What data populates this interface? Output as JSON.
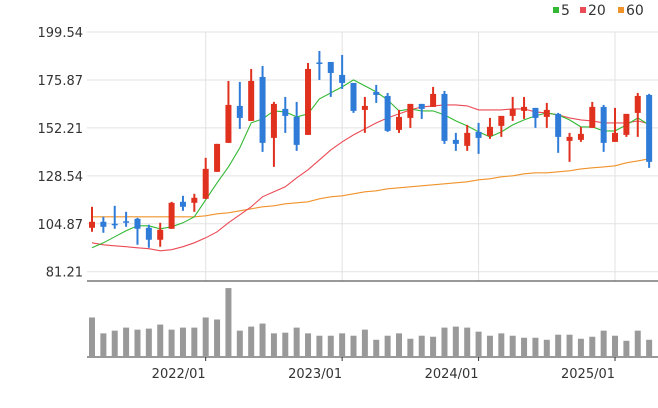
{
  "chart_data": {
    "type": "candlestick",
    "interval": "monthly",
    "dates": [
      "2021/03",
      "2021/04",
      "2021/05",
      "2021/06",
      "2021/07",
      "2021/08",
      "2021/09",
      "2021/10",
      "2021/11",
      "2021/12",
      "2022/01",
      "2022/02",
      "2022/03",
      "2022/04",
      "2022/05",
      "2022/06",
      "2022/07",
      "2022/08",
      "2022/09",
      "2022/10",
      "2022/11",
      "2022/12",
      "2023/01",
      "2023/02",
      "2023/03",
      "2023/04",
      "2023/05",
      "2023/06",
      "2023/07",
      "2023/08",
      "2023/09",
      "2023/10",
      "2023/11",
      "2023/12",
      "2024/01",
      "2024/02",
      "2024/03",
      "2024/04",
      "2024/05",
      "2024/06",
      "2024/07",
      "2024/08",
      "2024/09",
      "2024/10",
      "2024/11",
      "2024/12",
      "2025/01",
      "2025/02",
      "2025/03",
      "2025/04"
    ],
    "x_tick_labels": [
      "2022/01",
      "2023/01",
      "2024/01",
      "2025/01"
    ],
    "y_tick_labels": [
      "199.54",
      "175.87",
      "152.21",
      "128.54",
      "104.87",
      "81.21"
    ],
    "ylim": [
      81.21,
      199.54
    ],
    "grid": true,
    "up_color": "#e0301e",
    "down_color": "#2f7bd8",
    "ohlc": [
      [
        102.89,
        113.25,
        100.92,
        105.85
      ],
      [
        105.85,
        108.32,
        100.43,
        103.38
      ],
      [
        104.87,
        113.74,
        102.4,
        104.37
      ],
      [
        106.1,
        110.78,
        103.38,
        105.6
      ],
      [
        107.33,
        107.82,
        94.51,
        102.4
      ],
      [
        102.89,
        104.37,
        93.03,
        96.98
      ],
      [
        96.98,
        105.36,
        93.53,
        101.91
      ],
      [
        102.4,
        115.72,
        102.4,
        115.22
      ],
      [
        115.72,
        118.67,
        111.27,
        113.25
      ],
      [
        115.22,
        119.66,
        110.78,
        117.69
      ],
      [
        117.19,
        137.41,
        117.19,
        131.98
      ],
      [
        130.51,
        144.31,
        130.51,
        144.31
      ],
      [
        144.81,
        175.38,
        144.81,
        163.54
      ],
      [
        163.05,
        174.89,
        151.71,
        157.13
      ],
      [
        155.65,
        181.3,
        155.65,
        175.38
      ],
      [
        177.35,
        182.77,
        140.37,
        144.81
      ],
      [
        147.27,
        165.02,
        132.97,
        164.04
      ],
      [
        161.57,
        167.49,
        149.74,
        158.12
      ],
      [
        157.63,
        165.02,
        140.86,
        143.82
      ],
      [
        148.75,
        184.25,
        148.75,
        181.3
      ],
      [
        184.5,
        190.17,
        175.87,
        184.0
      ],
      [
        184.75,
        184.75,
        167.49,
        179.32
      ],
      [
        178.34,
        188.2,
        171.43,
        174.39
      ],
      [
        174.39,
        174.39,
        159.6,
        160.59
      ],
      [
        161.08,
        167.49,
        149.74,
        163.05
      ],
      [
        169.95,
        173.41,
        164.53,
        168.47
      ],
      [
        167.98,
        169.46,
        150.23,
        150.72
      ],
      [
        151.22,
        161.08,
        149.74,
        157.63
      ],
      [
        157.13,
        164.04,
        152.2,
        164.04
      ],
      [
        164.04,
        164.04,
        156.64,
        161.57
      ],
      [
        162.56,
        172.42,
        162.56,
        168.97
      ],
      [
        168.97,
        170.45,
        144.31,
        145.79
      ],
      [
        146.29,
        149.74,
        140.86,
        144.31
      ],
      [
        143.33,
        153.68,
        140.86,
        149.74
      ],
      [
        150.23,
        154.67,
        139.38,
        147.27
      ],
      [
        148.26,
        157.13,
        146.78,
        152.7
      ],
      [
        153.19,
        158.12,
        147.76,
        158.12
      ],
      [
        158.12,
        167.49,
        155.65,
        161.57
      ],
      [
        160.59,
        167.49,
        156.64,
        162.56
      ],
      [
        162.07,
        162.07,
        152.2,
        157.13
      ],
      [
        157.63,
        164.53,
        152.2,
        161.08
      ],
      [
        159.11,
        159.6,
        139.88,
        147.76
      ],
      [
        145.79,
        149.74,
        135.44,
        147.76
      ],
      [
        146.29,
        152.7,
        145.3,
        149.25
      ],
      [
        152.2,
        165.02,
        152.2,
        162.56
      ],
      [
        162.56,
        163.54,
        140.37,
        144.81
      ],
      [
        145.3,
        162.07,
        145.3,
        149.74
      ],
      [
        148.75,
        159.11,
        147.76,
        159.11
      ],
      [
        159.6,
        169.46,
        147.76,
        167.98
      ],
      [
        168.47,
        168.97,
        132.48,
        135.44
      ]
    ],
    "ohlc_order": [
      "open",
      "high",
      "low",
      "close"
    ],
    "moving_averages": [
      {
        "name": "5",
        "color": "#33b833",
        "values": [
          93.03,
          95.5,
          98.45,
          101.42,
          103.88,
          103.88,
          102.4,
          103.38,
          105.36,
          108.32,
          116.7,
          125.08,
          132.97,
          142.34,
          154.67,
          156.64,
          160.59,
          160.09,
          157.63,
          159.11,
          166.5,
          169.46,
          172.42,
          175.87,
          172.91,
          169.95,
          166.01,
          160.59,
          161.57,
          160.59,
          160.59,
          158.62,
          155.65,
          153.19,
          150.23,
          147.76,
          150.23,
          153.68,
          156.15,
          158.12,
          159.6,
          158.62,
          156.15,
          152.7,
          152.7,
          150.72,
          150.72,
          153.68,
          157.13,
          153.68
        ]
      },
      {
        "name": "20",
        "color": "#ea4b56",
        "values": [
          95.5,
          94.51,
          94.02,
          93.53,
          93.03,
          92.54,
          91.55,
          92.05,
          93.53,
          95.5,
          97.96,
          100.92,
          105.36,
          109.3,
          113.25,
          118.18,
          120.65,
          123.11,
          127.55,
          131.49,
          136.42,
          141.36,
          145.3,
          148.75,
          151.71,
          154.67,
          157.13,
          159.11,
          161.08,
          162.56,
          163.05,
          163.54,
          163.54,
          163.05,
          161.08,
          161.08,
          161.08,
          161.57,
          161.57,
          160.09,
          159.6,
          158.62,
          157.13,
          156.15,
          155.65,
          154.67,
          154.67,
          154.67,
          155.65,
          154.18
        ]
      },
      {
        "name": "60",
        "color": "#f0932b",
        "values": [
          108.32,
          108.32,
          108.32,
          108.32,
          108.32,
          108.32,
          108.32,
          108.32,
          108.32,
          108.32,
          108.81,
          109.8,
          110.29,
          111.27,
          112.26,
          113.25,
          113.74,
          114.73,
          115.22,
          115.72,
          117.19,
          118.18,
          118.67,
          119.66,
          120.65,
          121.14,
          122.13,
          122.62,
          123.11,
          123.61,
          124.1,
          124.59,
          125.08,
          125.58,
          126.56,
          127.05,
          128.04,
          128.53,
          129.52,
          130.01,
          130.01,
          130.51,
          131.0,
          131.98,
          132.48,
          132.97,
          133.47,
          134.95,
          135.93,
          136.92
        ]
      }
    ],
    "volume": {
      "unit": "relative",
      "color": "#999999",
      "values": [
        117,
        70,
        78,
        87,
        81,
        84,
        96,
        81,
        87,
        87,
        117,
        111,
        204,
        78,
        90,
        99,
        70,
        72,
        87,
        70,
        63,
        63,
        70,
        63,
        81,
        51,
        63,
        70,
        54,
        63,
        60,
        87,
        90,
        87,
        75,
        63,
        70,
        63,
        57,
        57,
        51,
        66,
        66,
        54,
        60,
        78,
        63,
        48,
        78,
        51
      ]
    },
    "legend": {
      "placement": "top-right",
      "items": [
        "5",
        "20",
        "60"
      ]
    }
  }
}
